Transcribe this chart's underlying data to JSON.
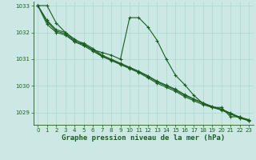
{
  "background_color": "#cce8e4",
  "grid_color": "#a8d4ce",
  "line_color": "#1a5e20",
  "title": "Graphe pression niveau de la mer (hPa)",
  "xlim": [
    -0.5,
    23.5
  ],
  "ylim": [
    1028.55,
    1033.15
  ],
  "yticks": [
    1029,
    1030,
    1031,
    1032,
    1033
  ],
  "xticks": [
    0,
    1,
    2,
    3,
    4,
    5,
    6,
    7,
    8,
    9,
    10,
    11,
    12,
    13,
    14,
    15,
    16,
    17,
    18,
    19,
    20,
    21,
    22,
    23
  ],
  "series": [
    {
      "x": [
        0,
        1,
        2,
        3,
        4,
        5,
        6,
        7,
        8,
        9,
        10,
        11,
        12,
        13,
        14,
        15,
        16,
        17,
        18,
        19,
        20,
        21,
        22,
        23
      ],
      "y": [
        1033.0,
        1033.0,
        1032.35,
        1032.0,
        1031.75,
        1031.55,
        1031.35,
        1031.25,
        1031.15,
        1031.0,
        1032.55,
        1032.55,
        1032.2,
        1031.7,
        1031.0,
        1030.4,
        1030.05,
        1029.65,
        1029.35,
        1029.2,
        1029.2,
        1028.85,
        1028.85,
        1028.7
      ]
    },
    {
      "x": [
        0,
        1,
        2,
        3,
        4,
        5,
        6,
        7,
        8,
        9,
        10,
        11,
        12,
        13,
        14,
        15,
        16,
        17,
        18,
        19,
        20,
        21,
        22,
        23
      ],
      "y": [
        1033.0,
        1032.3,
        1032.0,
        1031.9,
        1031.65,
        1031.5,
        1031.3,
        1031.1,
        1030.95,
        1030.8,
        1030.65,
        1030.5,
        1030.3,
        1030.1,
        1029.95,
        1029.8,
        1029.6,
        1029.45,
        1029.3,
        1029.2,
        1029.1,
        1028.95,
        1028.8,
        1028.7
      ]
    },
    {
      "x": [
        0,
        1,
        2,
        3,
        4,
        5,
        6,
        7,
        8,
        9,
        10,
        11,
        12,
        13,
        14,
        15,
        16,
        17,
        18,
        19,
        20,
        21,
        22,
        23
      ],
      "y": [
        1033.0,
        1032.4,
        1032.05,
        1031.95,
        1031.65,
        1031.55,
        1031.35,
        1031.12,
        1030.97,
        1030.82,
        1030.67,
        1030.52,
        1030.35,
        1030.15,
        1030.0,
        1029.85,
        1029.65,
        1029.5,
        1029.35,
        1029.22,
        1029.12,
        1028.97,
        1028.82,
        1028.72
      ]
    },
    {
      "x": [
        0,
        1,
        2,
        3,
        4,
        5,
        6,
        7,
        8,
        9,
        10,
        11,
        12,
        13,
        14,
        15,
        16,
        17,
        18,
        19,
        20,
        21,
        22,
        23
      ],
      "y": [
        1033.0,
        1032.45,
        1032.1,
        1032.0,
        1031.7,
        1031.6,
        1031.4,
        1031.15,
        1031.0,
        1030.85,
        1030.7,
        1030.55,
        1030.38,
        1030.18,
        1030.03,
        1029.88,
        1029.68,
        1029.52,
        1029.37,
        1029.24,
        1029.14,
        1028.99,
        1028.84,
        1028.74
      ]
    }
  ],
  "marker": "+",
  "markersize": 3.5,
  "markeredgewidth": 0.8,
  "linewidth": 0.8,
  "title_fontsize": 6.5,
  "tick_fontsize": 5.0,
  "fig_width": 3.2,
  "fig_height": 2.0,
  "dpi": 100
}
